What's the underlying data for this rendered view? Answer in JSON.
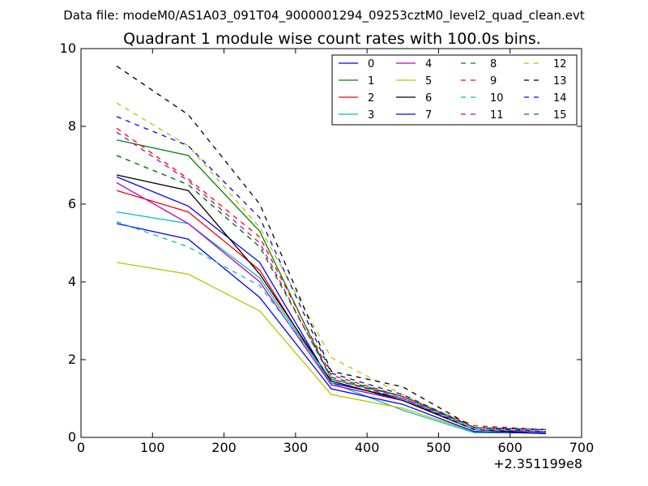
{
  "header": {
    "data_file": "Data file: modeM0/AS1A03_091T04_9000001294_09253cztM0_level2_quad_clean.evt"
  },
  "chart_data": {
    "type": "line",
    "title": "Quadrant 1 module wise count rates with 100.0s bins.",
    "xlabel": "",
    "ylabel": "",
    "x_offset_label": "+2.351199e8",
    "xlim": [
      0,
      700
    ],
    "ylim": [
      0,
      10
    ],
    "x_ticks": [
      0,
      100,
      200,
      300,
      400,
      500,
      600,
      700
    ],
    "y_ticks": [
      0,
      2,
      4,
      6,
      8,
      10
    ],
    "grid": false,
    "legend_position": "top-right",
    "legend_columns": 4,
    "x": [
      50,
      150,
      250,
      350,
      450,
      550,
      650
    ],
    "series": [
      {
        "name": "0",
        "color": "#0000ff",
        "style": "solid",
        "values": [
          6.7,
          5.95,
          4.5,
          1.4,
          1.0,
          0.2,
          0.15
        ]
      },
      {
        "name": "1",
        "color": "#008000",
        "style": "solid",
        "values": [
          7.65,
          7.25,
          5.3,
          1.5,
          1.05,
          0.25,
          0.2
        ]
      },
      {
        "name": "2",
        "color": "#ff0000",
        "style": "solid",
        "values": [
          6.35,
          5.8,
          4.3,
          1.35,
          0.95,
          0.2,
          0.15
        ]
      },
      {
        "name": "3",
        "color": "#00bfbf",
        "style": "solid",
        "values": [
          5.8,
          5.5,
          4.1,
          1.4,
          0.7,
          0.12,
          0.12
        ]
      },
      {
        "name": "4",
        "color": "#bf00bf",
        "style": "solid",
        "values": [
          6.55,
          5.5,
          4.0,
          1.35,
          0.95,
          0.2,
          0.15
        ]
      },
      {
        "name": "5",
        "color": "#bfbf00",
        "style": "solid",
        "values": [
          4.5,
          4.2,
          3.25,
          1.1,
          0.75,
          0.15,
          0.1
        ]
      },
      {
        "name": "6",
        "color": "#000000",
        "style": "solid",
        "values": [
          6.75,
          6.35,
          4.2,
          1.45,
          0.95,
          0.2,
          0.1
        ]
      },
      {
        "name": "7",
        "color": "#0000ff",
        "style": "solid",
        "values": [
          5.5,
          5.1,
          3.6,
          1.25,
          0.85,
          0.15,
          0.1
        ]
      },
      {
        "name": "8",
        "color": "#008000",
        "style": "dashed",
        "values": [
          7.25,
          6.5,
          4.9,
          1.55,
          1.05,
          0.25,
          0.2
        ]
      },
      {
        "name": "9",
        "color": "#ff0000",
        "style": "dashed",
        "values": [
          7.95,
          6.65,
          5.15,
          1.6,
          1.05,
          0.3,
          0.2
        ]
      },
      {
        "name": "10",
        "color": "#00bfbf",
        "style": "dashed",
        "values": [
          5.55,
          4.9,
          3.9,
          1.5,
          1.0,
          0.2,
          0.15
        ]
      },
      {
        "name": "11",
        "color": "#bf00bf",
        "style": "dashed",
        "values": [
          7.85,
          6.6,
          5.0,
          1.5,
          1.0,
          0.25,
          0.2
        ]
      },
      {
        "name": "12",
        "color": "#bfbf00",
        "style": "dashed",
        "values": [
          8.6,
          7.5,
          5.4,
          2.05,
          1.1,
          0.25,
          0.2
        ]
      },
      {
        "name": "13",
        "color": "#000000",
        "style": "dashed",
        "values": [
          9.55,
          8.3,
          6.0,
          1.7,
          1.3,
          0.25,
          0.2
        ]
      },
      {
        "name": "14",
        "color": "#0000ff",
        "style": "dashed",
        "values": [
          8.25,
          7.5,
          5.65,
          1.65,
          1.1,
          0.25,
          0.15
        ]
      },
      {
        "name": "15",
        "color": "#008000",
        "style": "dashed",
        "values": [
          7.25,
          6.5,
          4.9,
          1.55,
          1.05,
          0.25,
          0.2
        ]
      }
    ]
  }
}
